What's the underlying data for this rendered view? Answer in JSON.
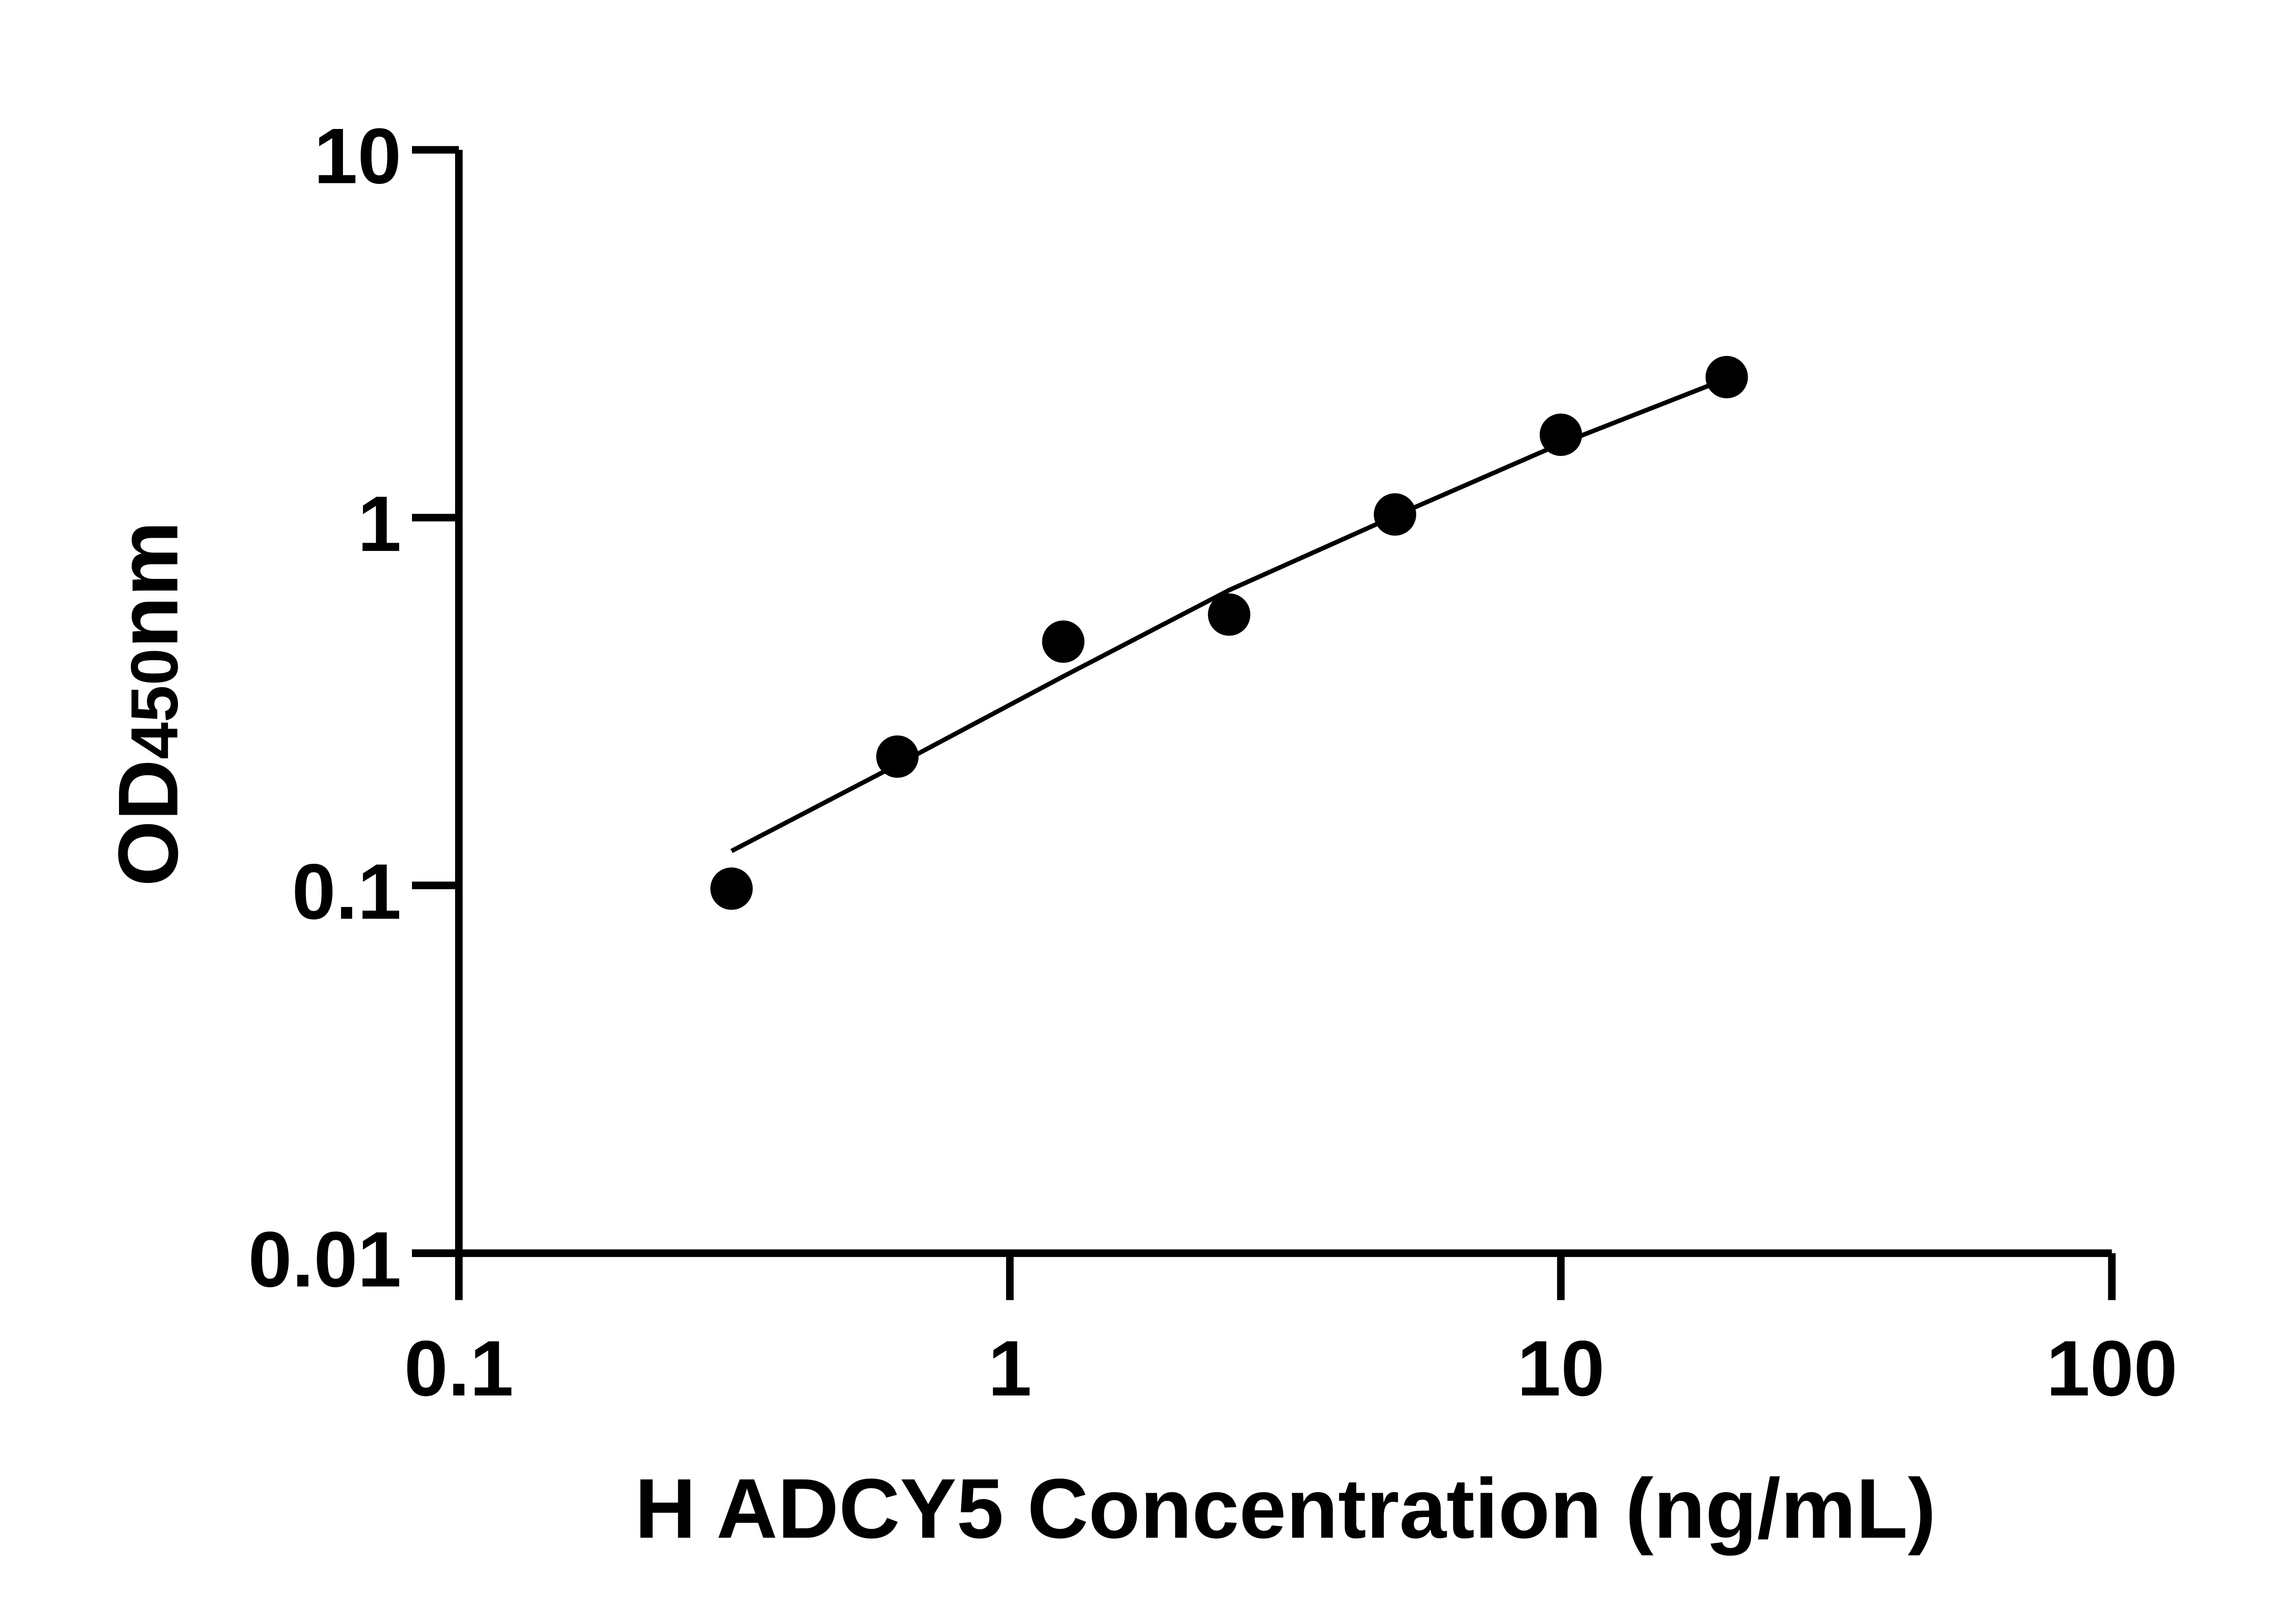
{
  "chart_data": {
    "type": "scatter",
    "title": "",
    "xlabel": "H ADCY5 Concentration (ng/mL)",
    "ylabel": {
      "main": "OD",
      "sub": "450",
      "unit": "nm"
    },
    "xscale": "log",
    "yscale": "log",
    "xlim": [
      0.1,
      100
    ],
    "ylim": [
      0.01,
      10
    ],
    "xticks": [
      "0.1",
      "1",
      "10",
      "100"
    ],
    "yticks": [
      "0.01",
      "0.1",
      "1",
      "10"
    ],
    "grid": false,
    "legend": "none",
    "color": "#000000",
    "points": {
      "x": [
        0.3125,
        0.625,
        1.25,
        2.5,
        5,
        10,
        20
      ],
      "y": [
        0.098,
        0.224,
        0.46,
        0.545,
        1.02,
        1.68,
        2.41
      ]
    },
    "fit_curve": {
      "x": [
        0.3125,
        0.625,
        1.25,
        2.5,
        5,
        10,
        18.5
      ],
      "y": [
        0.124,
        0.213,
        0.37,
        0.635,
        1.01,
        1.59,
        2.28
      ]
    }
  }
}
